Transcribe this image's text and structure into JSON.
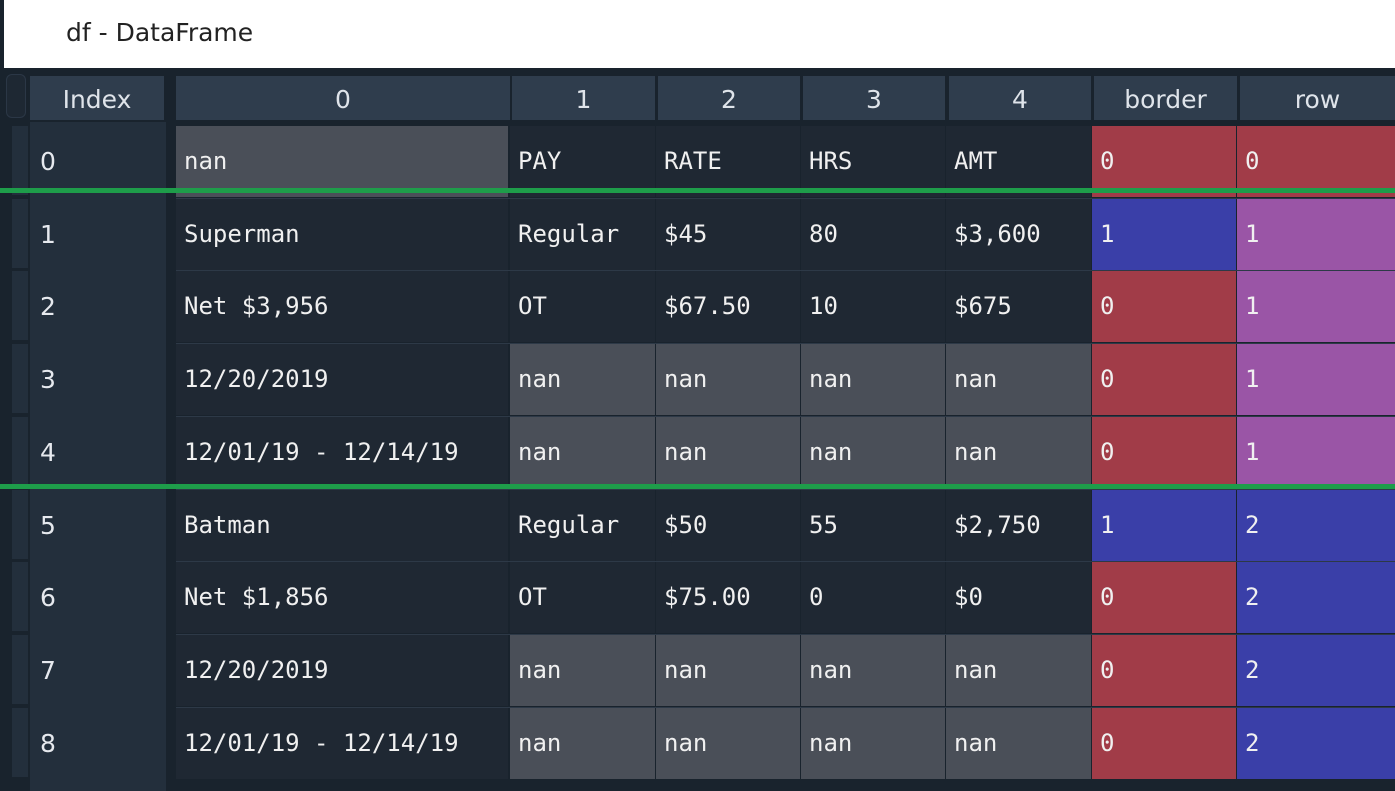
{
  "window": {
    "title": "df - DataFrame"
  },
  "table": {
    "index_header": "Index",
    "columns": [
      "0",
      "1",
      "2",
      "3",
      "4",
      "border",
      "row"
    ],
    "rows": [
      {
        "index": "0",
        "cells": [
          "nan",
          "PAY",
          "RATE",
          "HRS",
          "AMT",
          "0",
          "0"
        ]
      },
      {
        "index": "1",
        "cells": [
          "Superman",
          "Regular",
          "$45",
          "80",
          "$3,600",
          "1",
          "1"
        ]
      },
      {
        "index": "2",
        "cells": [
          "Net $3,956",
          "OT",
          "$67.50",
          "10",
          "$675",
          "0",
          "1"
        ]
      },
      {
        "index": "3",
        "cells": [
          "12/20/2019",
          "nan",
          "nan",
          "nan",
          "nan",
          "0",
          "1"
        ]
      },
      {
        "index": "4",
        "cells": [
          "12/01/19 - 12/14/19",
          "nan",
          "nan",
          "nan",
          "nan",
          "0",
          "1"
        ]
      },
      {
        "index": "5",
        "cells": [
          "Batman",
          "Regular",
          "$50",
          "55",
          "$2,750",
          "1",
          "2"
        ]
      },
      {
        "index": "6",
        "cells": [
          "Net $1,856",
          "OT",
          "$75.00",
          "0",
          "$0",
          "0",
          "2"
        ]
      },
      {
        "index": "7",
        "cells": [
          "12/20/2019",
          "nan",
          "nan",
          "nan",
          "nan",
          "0",
          "2"
        ]
      },
      {
        "index": "8",
        "cells": [
          "12/01/19 - 12/14/19",
          "nan",
          "nan",
          "nan",
          "nan",
          "0",
          "2"
        ]
      }
    ]
  },
  "colors": {
    "red": "#a13c48",
    "blue": "#3a3fa8",
    "purple": "#9a55a6",
    "nan": "#4a4f58",
    "highlight_line": "#1e9d4a"
  }
}
